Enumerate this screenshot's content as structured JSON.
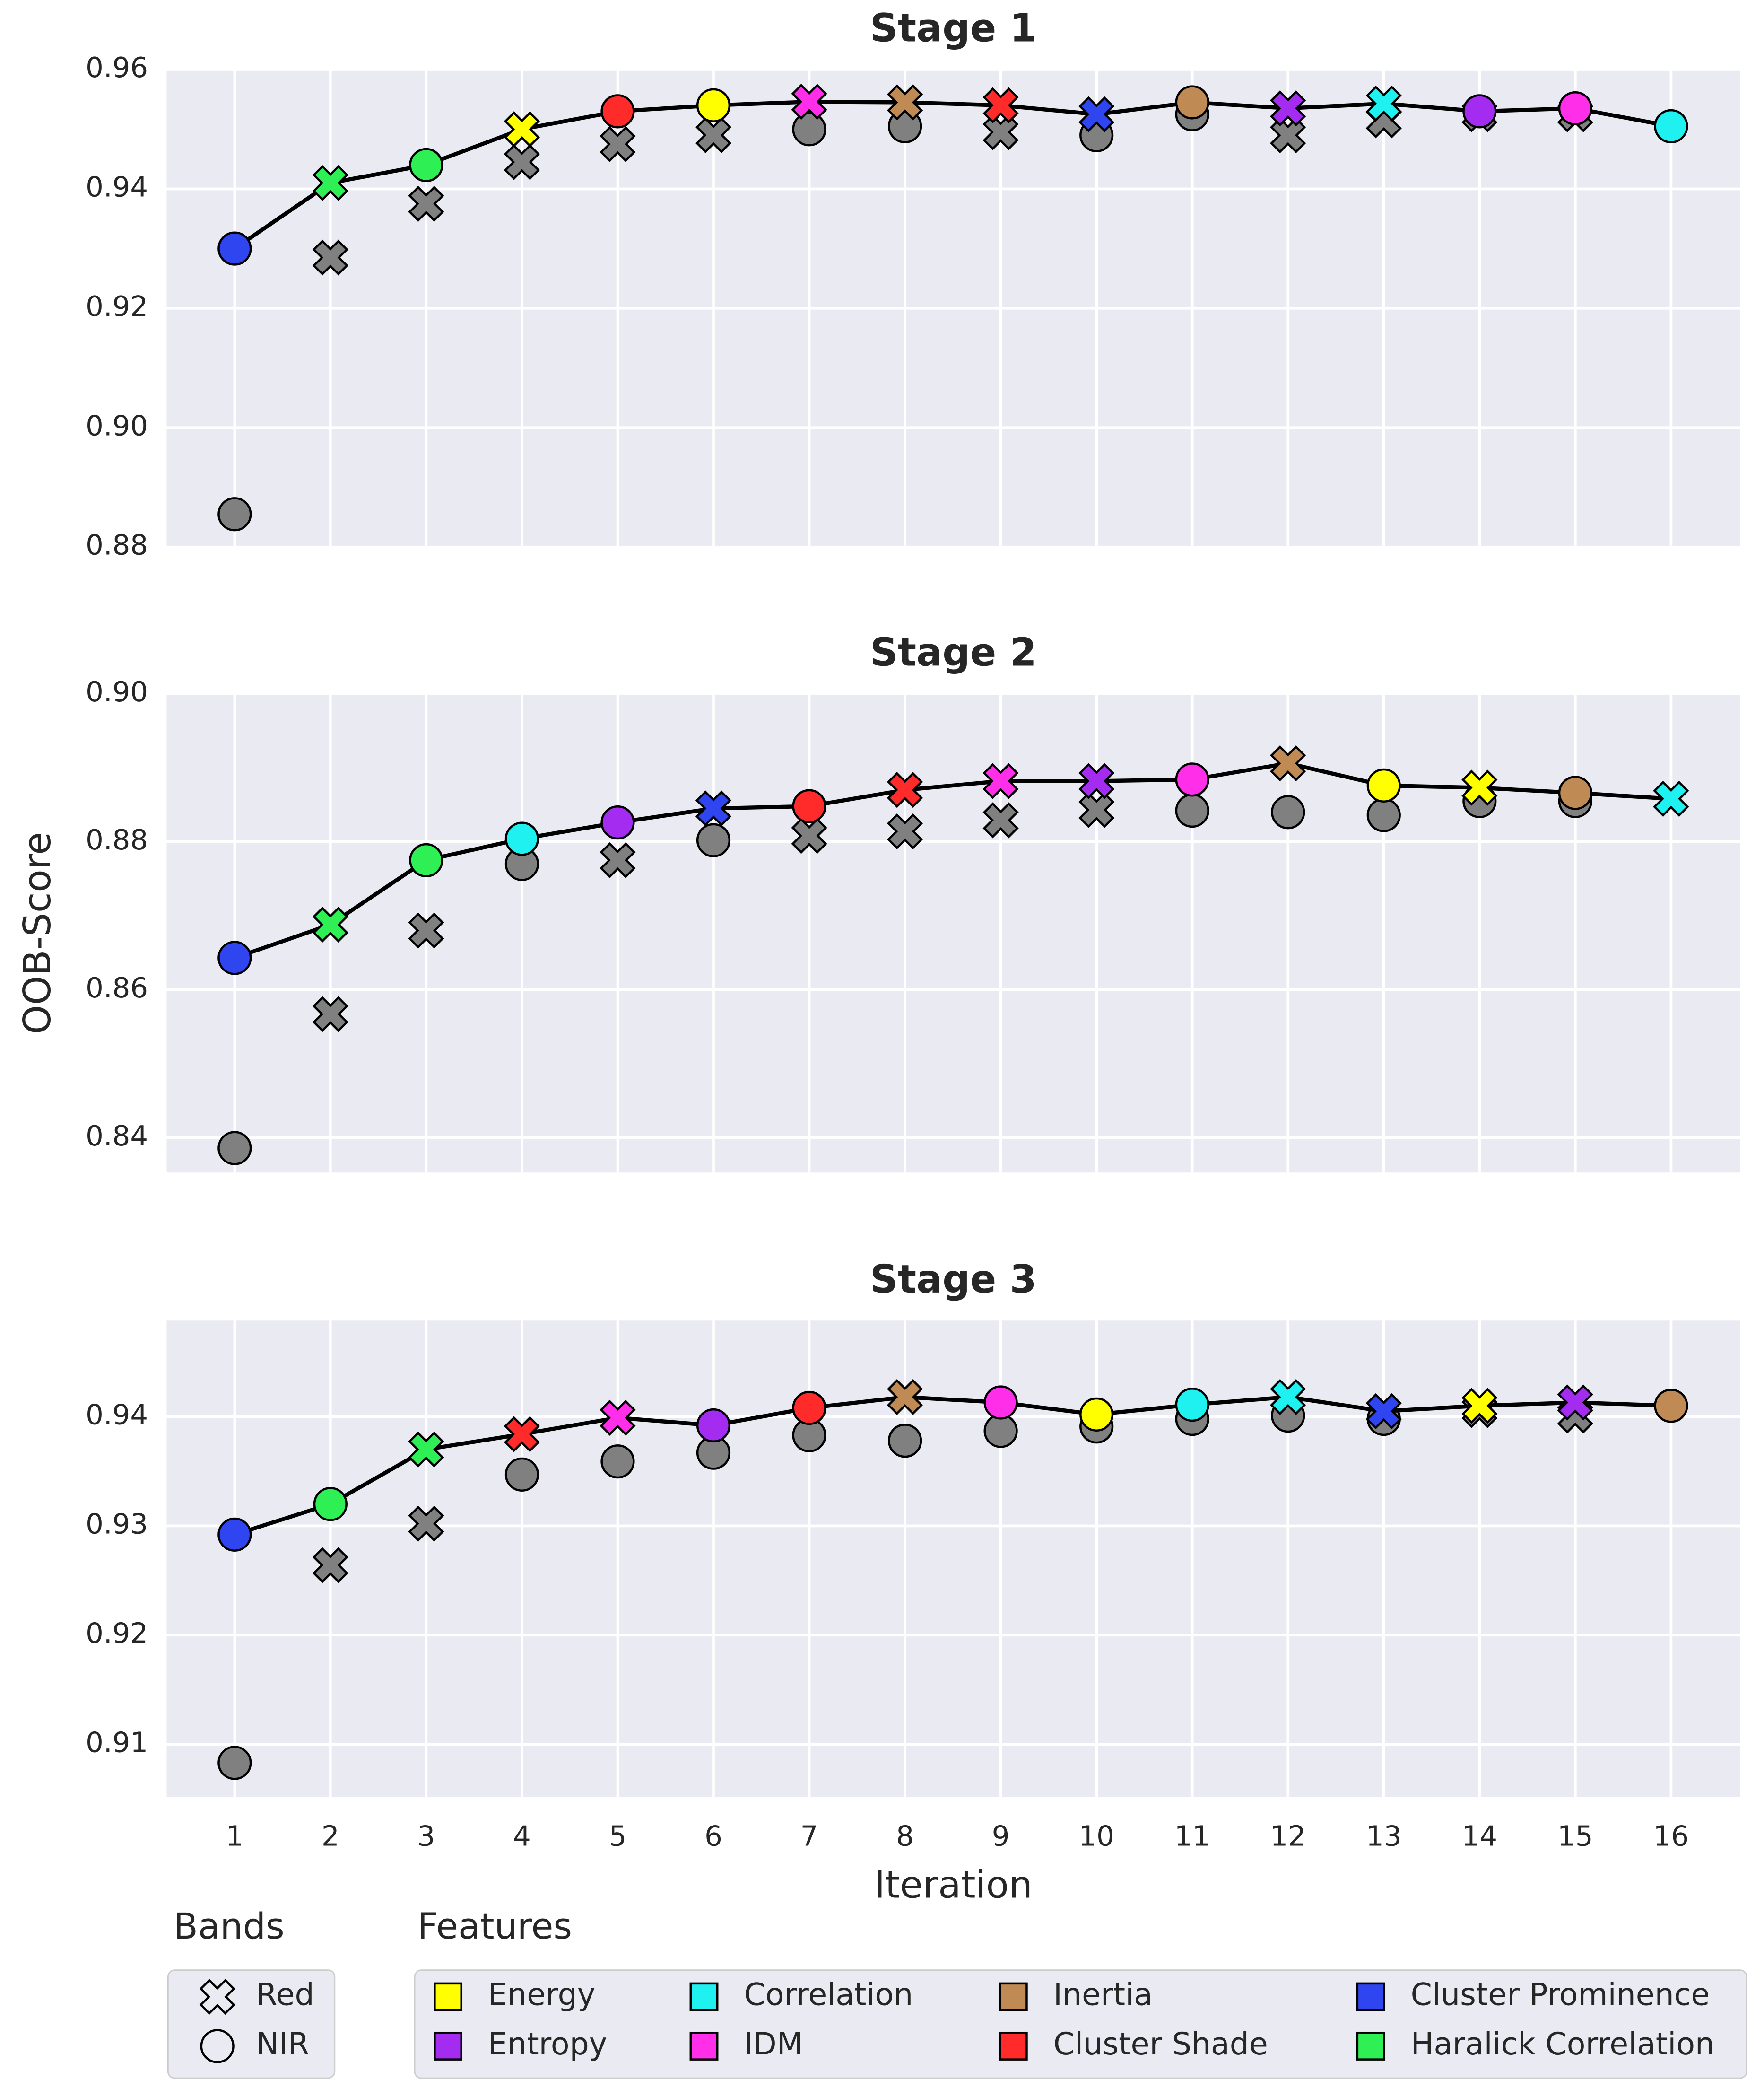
{
  "chart_data": [
    {
      "type": "line",
      "title": "Stage 1",
      "x": [
        1,
        2,
        3,
        4,
        5,
        6,
        7,
        8,
        9,
        10,
        11,
        12,
        13,
        14,
        15,
        16
      ],
      "values": [
        0.93,
        0.941,
        0.944,
        0.95,
        0.953,
        0.954,
        0.9546,
        0.9545,
        0.954,
        0.9525,
        0.9545,
        0.9535,
        0.9543,
        0.953,
        0.9535,
        0.9505
      ],
      "features": [
        "Cluster Prominence",
        "Haralick Correlation",
        "Haralick Correlation",
        "Energy",
        "Cluster Shade",
        "Energy",
        "IDM",
        "Inertia",
        "Cluster Shade",
        "Cluster Prominence",
        "Inertia",
        "Entropy",
        "Correlation",
        "Entropy",
        "IDM",
        "Correlation"
      ],
      "bands": [
        "NIR",
        "Red",
        "NIR",
        "Red",
        "NIR",
        "NIR",
        "Red",
        "Red",
        "Red",
        "Red",
        "NIR",
        "Red",
        "Red",
        "NIR",
        "NIR",
        "NIR"
      ],
      "others": {
        "x": [
          1,
          2,
          3,
          4,
          5,
          6,
          7,
          8,
          9,
          10,
          11,
          12,
          13,
          14,
          15
        ],
        "values": [
          0.8855,
          0.9285,
          0.9375,
          0.9445,
          0.9475,
          0.949,
          0.95,
          0.9505,
          0.9495,
          0.949,
          0.9525,
          0.949,
          0.9515,
          0.9525,
          0.9525
        ],
        "bands": [
          "NIR",
          "Red",
          "Red",
          "Red",
          "Red",
          "Red",
          "NIR",
          "NIR",
          "Red",
          "NIR",
          "NIR",
          "Red",
          "Red",
          "Red",
          "Red"
        ]
      },
      "xlim": [
        0.29,
        16.72
      ],
      "xticks": [
        1,
        2,
        3,
        4,
        5,
        6,
        7,
        8,
        9,
        10,
        11,
        12,
        13,
        14,
        15,
        16
      ],
      "show_xtick_labels": false,
      "ylim": [
        0.88,
        0.96
      ],
      "yticks": [
        {
          "value": 0.88,
          "label": "0.88"
        },
        {
          "value": 0.9,
          "label": "0.90"
        },
        {
          "value": 0.92,
          "label": "0.92"
        },
        {
          "value": 0.94,
          "label": "0.94"
        },
        {
          "value": 0.96,
          "label": "0.96"
        }
      ],
      "grid": true,
      "line_color": "#000000",
      "other_color": "#808080"
    },
    {
      "type": "line",
      "title": "Stage 2",
      "ylabel": "OOB-Score",
      "x": [
        1,
        2,
        3,
        4,
        5,
        6,
        7,
        8,
        9,
        10,
        11,
        12,
        13,
        14,
        15,
        16
      ],
      "values": [
        0.8643,
        0.8688,
        0.8775,
        0.8804,
        0.8826,
        0.8845,
        0.8848,
        0.887,
        0.8882,
        0.8882,
        0.8884,
        0.8906,
        0.8876,
        0.8873,
        0.8866,
        0.8858
      ],
      "features": [
        "Cluster Prominence",
        "Haralick Correlation",
        "Haralick Correlation",
        "Correlation",
        "Entropy",
        "Cluster Prominence",
        "Cluster Shade",
        "Cluster Shade",
        "IDM",
        "Entropy",
        "IDM",
        "Inertia",
        "Energy",
        "Energy",
        "Inertia",
        "Correlation"
      ],
      "bands": [
        "NIR",
        "Red",
        "NIR",
        "NIR",
        "NIR",
        "Red",
        "NIR",
        "Red",
        "Red",
        "Red",
        "NIR",
        "Red",
        "NIR",
        "Red",
        "NIR",
        "Red"
      ],
      "others": {
        "x": [
          1,
          2,
          3,
          4,
          5,
          6,
          7,
          8,
          9,
          10,
          11,
          12,
          13,
          14,
          15
        ],
        "values": [
          0.8386,
          0.8567,
          0.868,
          0.877,
          0.8775,
          0.8802,
          0.8808,
          0.8814,
          0.8829,
          0.8843,
          0.8842,
          0.884,
          0.8836,
          0.8855,
          0.8855
        ],
        "bands": [
          "NIR",
          "Red",
          "Red",
          "NIR",
          "Red",
          "NIR",
          "Red",
          "Red",
          "Red",
          "Red",
          "NIR",
          "NIR",
          "NIR",
          "NIR",
          "NIR"
        ]
      },
      "xlim": [
        0.29,
        16.72
      ],
      "xticks": [
        1,
        2,
        3,
        4,
        5,
        6,
        7,
        8,
        9,
        10,
        11,
        12,
        13,
        14,
        15,
        16
      ],
      "show_xtick_labels": false,
      "ylim": [
        0.8353,
        0.9
      ],
      "yticks": [
        0.84,
        0.86,
        0.88,
        {
          "value": 0.9,
          "label": "0.90"
        }
      ],
      "grid": true,
      "line_color": "#000000",
      "other_color": "#808080"
    },
    {
      "type": "line",
      "title": "Stage 3",
      "xlabel": "Iteration",
      "x": [
        1,
        2,
        3,
        4,
        5,
        6,
        7,
        8,
        9,
        10,
        11,
        12,
        13,
        14,
        15,
        16
      ],
      "values": [
        0.9292,
        0.932,
        0.937,
        0.9384,
        0.9399,
        0.9392,
        0.9408,
        0.9418,
        0.9413,
        0.9402,
        0.9411,
        0.9418,
        0.9405,
        0.941,
        0.9413,
        0.941
      ],
      "features": [
        "Cluster Prominence",
        "Haralick Correlation",
        "Haralick Correlation",
        "Cluster Shade",
        "IDM",
        "Entropy",
        "Cluster Shade",
        "Inertia",
        "IDM",
        "Energy",
        "Correlation",
        "Correlation",
        "Cluster Prominence",
        "Energy",
        "Entropy",
        "Inertia"
      ],
      "bands": [
        "NIR",
        "NIR",
        "Red",
        "Red",
        "Red",
        "NIR",
        "NIR",
        "Red",
        "NIR",
        "NIR",
        "NIR",
        "Red",
        "Red",
        "Red",
        "Red",
        "NIR"
      ],
      "others": {
        "x": [
          1,
          2,
          3,
          4,
          5,
          6,
          7,
          8,
          9,
          10,
          11,
          12,
          13,
          14,
          15
        ],
        "values": [
          0.9083,
          0.9264,
          0.9302,
          0.9347,
          0.9359,
          0.9367,
          0.9383,
          0.9378,
          0.9387,
          0.9391,
          0.9398,
          0.9401,
          0.9398,
          0.9406,
          0.9401
        ],
        "bands": [
          "NIR",
          "Red",
          "Red",
          "NIR",
          "NIR",
          "NIR",
          "NIR",
          "NIR",
          "NIR",
          "NIR",
          "NIR",
          "NIR",
          "NIR",
          "Red",
          "Red"
        ]
      },
      "xlim": [
        0.29,
        16.72
      ],
      "xticks": [
        1,
        2,
        3,
        4,
        5,
        6,
        7,
        8,
        9,
        10,
        11,
        12,
        13,
        14,
        15,
        16
      ],
      "show_xtick_labels": true,
      "ylim": [
        0.9052,
        0.9488
      ],
      "yticks": [
        0.91,
        {
          "value": 0.92,
          "label": "0.92"
        },
        0.93,
        {
          "value": 0.94,
          "label": "0.94"
        }
      ],
      "grid": true,
      "line_color": "#000000",
      "other_color": "#808080"
    }
  ],
  "legend": {
    "bands_title": "Bands",
    "bands": [
      {
        "name": "Red",
        "marker": "x"
      },
      {
        "name": "NIR",
        "marker": "circle"
      }
    ],
    "features_title": "Features",
    "features": [
      {
        "name": "Energy",
        "color": "#ffff00"
      },
      {
        "name": "Entropy",
        "color": "#a32cf0"
      },
      {
        "name": "Correlation",
        "color": "#1ff0f0"
      },
      {
        "name": "IDM",
        "color": "#ff2ee8"
      },
      {
        "name": "Inertia",
        "color": "#c08a55"
      },
      {
        "name": "Cluster Shade",
        "color": "#ff2a2a"
      },
      {
        "name": "Cluster Prominence",
        "color": "#2f45f0"
      },
      {
        "name": "Haralick Correlation",
        "color": "#2ef055"
      }
    ]
  }
}
